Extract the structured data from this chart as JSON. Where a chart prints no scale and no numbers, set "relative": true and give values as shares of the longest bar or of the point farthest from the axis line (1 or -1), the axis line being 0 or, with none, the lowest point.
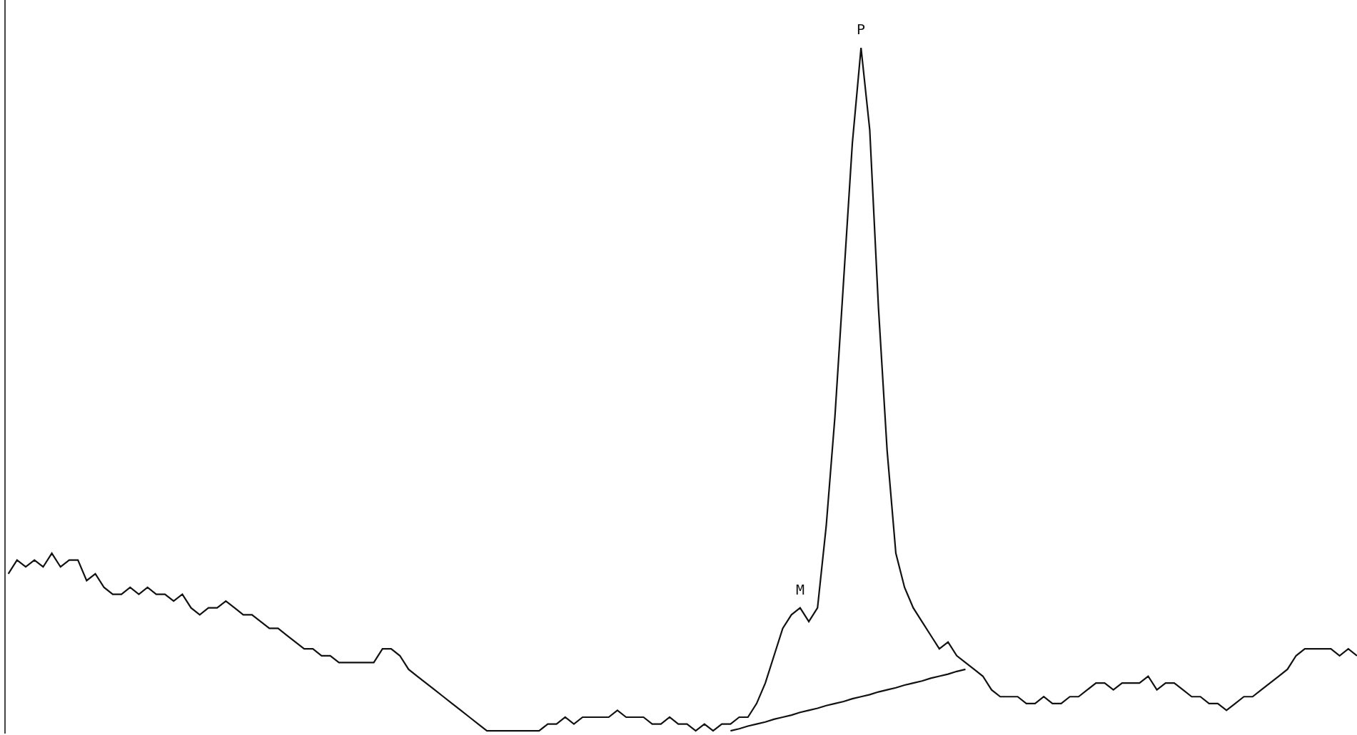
{
  "chart_data": {
    "type": "line",
    "relative": true,
    "marker": "none",
    "line_style": "solid",
    "categories": [
      null,
      null,
      null,
      null,
      null,
      null,
      null,
      null,
      null,
      null,
      null,
      null,
      null,
      null,
      null,
      null,
      null,
      null,
      null,
      null,
      null,
      null,
      null,
      null,
      null,
      null,
      null,
      null,
      null,
      null,
      null,
      null,
      null,
      null,
      null,
      null,
      null,
      null,
      null,
      null,
      null,
      null,
      null,
      null,
      null,
      null,
      null,
      null,
      null,
      null,
      null,
      null,
      null,
      null,
      null,
      null,
      null,
      null,
      null,
      null,
      null,
      null,
      null,
      null,
      null,
      null,
      null,
      null,
      null,
      null,
      null,
      null,
      null,
      null,
      null,
      null,
      null,
      null,
      null,
      null,
      null,
      null,
      null,
      null,
      null,
      null,
      null,
      null,
      null,
      null,
      null,
      null,
      null,
      null,
      null,
      null,
      null,
      null,
      null,
      null,
      null,
      null,
      null,
      null,
      null,
      null,
      null,
      null,
      null,
      null,
      null,
      null,
      null,
      null,
      null,
      null,
      null,
      null,
      null,
      null,
      null,
      null,
      null,
      null,
      null,
      null,
      null,
      null,
      null,
      null,
      null,
      null,
      null,
      null,
      null,
      null,
      null,
      null,
      null,
      null,
      null,
      null,
      null,
      null,
      null,
      null,
      null,
      null,
      null,
      null,
      null,
      null,
      null,
      null,
      null,
      null
    ],
    "series": [
      {
        "color": "#111111",
        "values": [
          0.23,
          0.25,
          0.24,
          0.25,
          0.24,
          0.26,
          0.24,
          0.25,
          0.25,
          0.22,
          0.23,
          0.21,
          0.2,
          0.2,
          0.21,
          0.2,
          0.21,
          0.2,
          0.2,
          0.19,
          0.2,
          0.18,
          0.17,
          0.18,
          0.18,
          0.19,
          0.18,
          0.17,
          0.17,
          0.16,
          0.15,
          0.15,
          0.14,
          0.13,
          0.12,
          0.12,
          0.11,
          0.11,
          0.1,
          0.1,
          0.1,
          0.1,
          0.1,
          0.12,
          0.12,
          0.11,
          0.09,
          0.08,
          0.07,
          0.06,
          0.05,
          0.04,
          0.03,
          0.02,
          0.01,
          0,
          0,
          0,
          0,
          0,
          0,
          0,
          0.01,
          0.01,
          0.02,
          0.01,
          0.02,
          0.02,
          0.02,
          0.02,
          0.03,
          0.02,
          0.02,
          0.02,
          0.01,
          0.01,
          0.02,
          0.01,
          0.01,
          0,
          0.01,
          0,
          0.01,
          0.01,
          0.02,
          0.02,
          0.04,
          0.07,
          0.11,
          0.15,
          0.17,
          0.18,
          0.16,
          0.18,
          0.3,
          0.46,
          0.66,
          0.86,
          1,
          0.88,
          0.62,
          0.41,
          0.26,
          0.21,
          0.18,
          0.16,
          0.14,
          0.12,
          0.13,
          0.11,
          0.1,
          0.09,
          0.08,
          0.06,
          0.05,
          0.05,
          0.05,
          0.04,
          0.04,
          0.05,
          0.04,
          0.04,
          0.05,
          0.05,
          0.06,
          0.07,
          0.07,
          0.06,
          0.07,
          0.07,
          0.07,
          0.08,
          0.06,
          0.07,
          0.07,
          0.06,
          0.05,
          0.05,
          0.04,
          0.04,
          0.03,
          0.04,
          0.05,
          0.05,
          0.06,
          0.07,
          0.08,
          0.09,
          0.11,
          0.12,
          0.12,
          0.12,
          0.12,
          0.11,
          0.12,
          0.11
        ]
      },
      {
        "color": "#111111",
        "values": [
          null,
          null,
          null,
          null,
          null,
          null,
          null,
          null,
          null,
          null,
          null,
          null,
          null,
          null,
          null,
          null,
          null,
          null,
          null,
          null,
          null,
          null,
          null,
          null,
          null,
          null,
          null,
          null,
          null,
          null,
          null,
          null,
          null,
          null,
          null,
          null,
          null,
          null,
          null,
          null,
          null,
          null,
          null,
          null,
          null,
          null,
          null,
          null,
          null,
          null,
          null,
          null,
          null,
          null,
          null,
          null,
          null,
          null,
          null,
          null,
          null,
          null,
          null,
          null,
          null,
          null,
          null,
          null,
          null,
          null,
          null,
          null,
          null,
          null,
          null,
          null,
          null,
          null,
          null,
          null,
          null,
          null,
          null,
          0,
          0.003,
          0.007,
          0.01,
          0.013,
          0.017,
          0.02,
          0.023,
          0.027,
          0.03,
          0.033,
          0.037,
          0.04,
          0.043,
          0.047,
          0.05,
          0.053,
          0.057,
          0.06,
          0.063,
          0.067,
          0.07,
          0.073,
          0.077,
          0.08,
          0.083,
          0.087,
          0.09,
          null,
          null,
          null,
          null,
          null,
          null,
          null,
          null,
          null,
          null,
          null,
          null,
          null,
          null,
          null,
          null,
          null,
          null,
          null,
          null,
          null,
          null,
          null,
          null,
          null,
          null,
          null,
          null,
          null,
          null,
          null,
          null,
          null,
          null,
          null,
          null,
          null,
          null,
          null,
          null,
          null,
          null,
          null,
          null,
          null
        ]
      }
    ],
    "annotations": [
      {
        "text": "P",
        "y": 1
      },
      {
        "text": "M",
        "y": 0.18
      }
    ]
  }
}
